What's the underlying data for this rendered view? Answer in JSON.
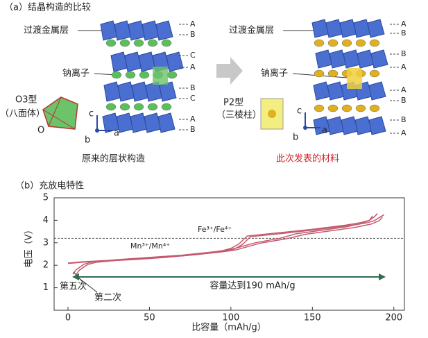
{
  "panel_a": {
    "title": "（a）结晶构造的比较",
    "left": {
      "layer_label": "过渡金属层",
      "ion_label": "钠离子",
      "type_label": "O3型",
      "type_sub": "（八面体）",
      "caption": "原来的层状构造",
      "stacking": [
        "A",
        "B",
        "C",
        "A",
        "B",
        "C",
        "A",
        "B"
      ]
    },
    "right": {
      "layer_label": "过渡金属层",
      "ion_label": "钠离子",
      "type_label": "P2型",
      "type_sub": "（三棱柱）",
      "caption": "此次发表的材料",
      "stacking": [
        "A",
        "B",
        "B",
        "A",
        "A",
        "B",
        "B",
        "A"
      ]
    },
    "axis_labels": {
      "c": "c",
      "b": "b",
      "a": "a",
      "origin": "O"
    }
  },
  "chart_data": {
    "type": "line",
    "title": "（b）充放电特性",
    "x_label": "比容量（mAh/g）",
    "y_label": "电压（V）",
    "xlim": [
      -8.5,
      206.5
    ],
    "xticks": [
      0,
      50,
      100,
      150,
      200
    ],
    "ylim": [
      0,
      5
    ],
    "yticks": [
      1,
      2,
      3,
      4,
      5
    ],
    "reference_line": 3.2,
    "series": [
      {
        "color": "#c45a6e",
        "x": [
          0,
          5,
          10,
          20,
          40,
          60,
          80,
          95,
          100,
          105,
          110,
          130,
          150,
          170,
          180,
          185,
          188,
          190
        ],
        "values": [
          2.1,
          2.13,
          2.16,
          2.2,
          2.27,
          2.37,
          2.5,
          2.65,
          2.75,
          2.95,
          3.3,
          3.45,
          3.6,
          3.78,
          3.9,
          4.0,
          4.15,
          4.3
        ]
      },
      {
        "color": "#c45a6e",
        "x": [
          0,
          5,
          10,
          20,
          40,
          60,
          80,
          97,
          102,
          107,
          112,
          132,
          152,
          172,
          183,
          188,
          191,
          194
        ],
        "values": [
          2.08,
          2.11,
          2.14,
          2.18,
          2.25,
          2.35,
          2.48,
          2.63,
          2.72,
          2.92,
          3.27,
          3.42,
          3.58,
          3.76,
          3.88,
          3.98,
          4.12,
          4.25
        ]
      },
      {
        "color": "#c45a6e",
        "x": [
          187,
          185,
          180,
          170,
          150,
          140,
          130,
          115,
          105,
          100,
          90,
          70,
          50,
          30,
          15,
          10,
          5,
          3
        ],
        "values": [
          4.2,
          4.0,
          3.85,
          3.7,
          3.5,
          3.4,
          3.2,
          3.0,
          2.8,
          2.7,
          2.6,
          2.45,
          2.35,
          2.25,
          2.15,
          2.05,
          1.8,
          1.6
        ]
      },
      {
        "color": "#c45a6e",
        "x": [
          193,
          191,
          186,
          176,
          156,
          146,
          134,
          118,
          108,
          103,
          93,
          72,
          52,
          32,
          17,
          12,
          7,
          5
        ],
        "values": [
          4.15,
          3.98,
          3.83,
          3.68,
          3.48,
          3.38,
          3.18,
          2.98,
          2.78,
          2.68,
          2.58,
          2.43,
          2.33,
          2.23,
          2.13,
          2.03,
          1.78,
          1.58
        ]
      }
    ],
    "annotations": {
      "fe": "Fe³⁺/Fe⁴⁺",
      "mn": "Mn³⁺/Mn⁴⁺",
      "fifth": "第五次",
      "second": "第二次",
      "capacity": "容量达到190 mAh/g"
    }
  }
}
